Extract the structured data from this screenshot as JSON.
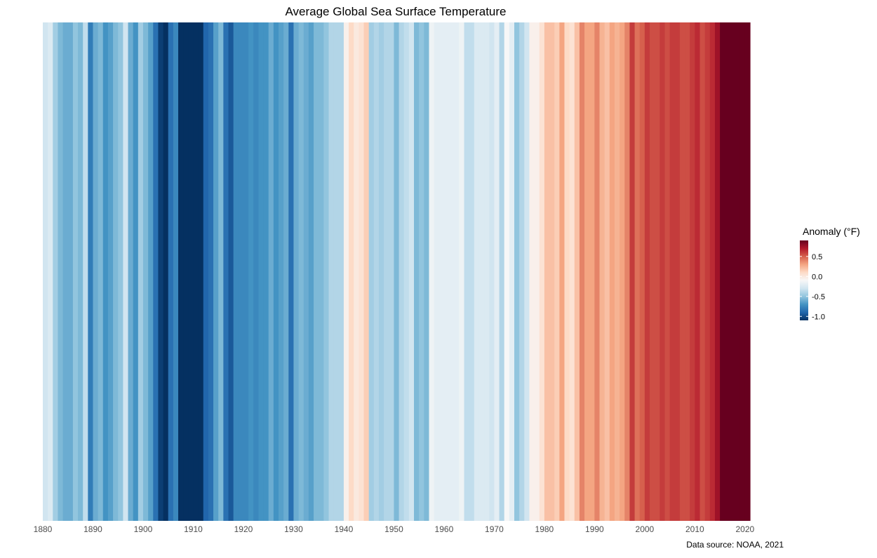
{
  "chart_data": {
    "type": "heatmap",
    "title": "Average Global Sea Surface Temperature",
    "caption": "Data source: NOAA, 2021",
    "x": [
      1880,
      1881,
      1882,
      1883,
      1884,
      1885,
      1886,
      1887,
      1888,
      1889,
      1890,
      1891,
      1892,
      1893,
      1894,
      1895,
      1896,
      1897,
      1898,
      1899,
      1900,
      1901,
      1902,
      1903,
      1904,
      1905,
      1906,
      1907,
      1908,
      1909,
      1910,
      1911,
      1912,
      1913,
      1914,
      1915,
      1916,
      1917,
      1918,
      1919,
      1920,
      1921,
      1922,
      1923,
      1924,
      1925,
      1926,
      1927,
      1928,
      1929,
      1930,
      1931,
      1932,
      1933,
      1934,
      1935,
      1936,
      1937,
      1938,
      1939,
      1940,
      1941,
      1942,
      1943,
      1944,
      1945,
      1946,
      1947,
      1948,
      1949,
      1950,
      1951,
      1952,
      1953,
      1954,
      1955,
      1956,
      1957,
      1958,
      1959,
      1960,
      1961,
      1962,
      1963,
      1964,
      1965,
      1966,
      1967,
      1968,
      1969,
      1970,
      1971,
      1972,
      1973,
      1974,
      1975,
      1976,
      1977,
      1978,
      1979,
      1980,
      1981,
      1982,
      1983,
      1984,
      1985,
      1986,
      1987,
      1988,
      1989,
      1990,
      1991,
      1992,
      1993,
      1994,
      1995,
      1996,
      1997,
      1998,
      1999,
      2000,
      2001,
      2002,
      2003,
      2004,
      2005,
      2006,
      2007,
      2008,
      2009,
      2010,
      2011,
      2012,
      2013,
      2014,
      2015,
      2016,
      2017,
      2018,
      2019,
      2020
    ],
    "values": [
      -0.3,
      -0.25,
      -0.45,
      -0.55,
      -0.6,
      -0.6,
      -0.5,
      -0.55,
      -0.35,
      -0.8,
      -0.6,
      -0.55,
      -0.7,
      -0.65,
      -0.55,
      -0.5,
      -0.3,
      -0.6,
      -0.7,
      -0.45,
      -0.55,
      -0.65,
      -0.85,
      -1.05,
      -1.15,
      -0.85,
      -0.75,
      -1.15,
      -1.2,
      -1.25,
      -1.2,
      -1.2,
      -0.9,
      -0.85,
      -0.65,
      -0.55,
      -0.85,
      -0.95,
      -0.75,
      -0.75,
      -0.75,
      -0.7,
      -0.75,
      -0.7,
      -0.7,
      -0.6,
      -0.7,
      -0.65,
      -0.6,
      -0.85,
      -0.6,
      -0.55,
      -0.6,
      -0.65,
      -0.55,
      -0.55,
      -0.5,
      -0.4,
      -0.4,
      -0.4,
      -0.05,
      0.1,
      0.0,
      0.05,
      0.15,
      -0.45,
      -0.4,
      -0.45,
      -0.4,
      -0.4,
      -0.55,
      -0.4,
      -0.35,
      -0.3,
      -0.55,
      -0.5,
      -0.55,
      -0.15,
      -0.2,
      -0.2,
      -0.2,
      -0.2,
      -0.2,
      -0.15,
      -0.35,
      -0.35,
      -0.25,
      -0.25,
      -0.25,
      -0.3,
      -0.2,
      -0.4,
      -0.1,
      -0.2,
      -0.5,
      -0.4,
      -0.3,
      -0.05,
      -0.05,
      0.05,
      0.2,
      0.2,
      0.15,
      0.3,
      0.1,
      0.05,
      0.2,
      0.4,
      0.3,
      0.3,
      0.4,
      0.25,
      0.2,
      0.3,
      0.25,
      0.3,
      0.4,
      0.6,
      0.45,
      0.5,
      0.6,
      0.55,
      0.55,
      0.6,
      0.55,
      0.6,
      0.6,
      0.55,
      0.55,
      0.6,
      0.65,
      0.55,
      0.6,
      0.65,
      0.75,
      1.0,
      1.0,
      0.9,
      1.0,
      1.1,
      1.05
    ],
    "xlabel": "",
    "ylabel": "",
    "x_ticks": [
      "1880",
      "1890",
      "1900",
      "1910",
      "1920",
      "1930",
      "1940",
      "1950",
      "1960",
      "1970",
      "1980",
      "1990",
      "2000",
      "2010",
      "2020"
    ],
    "x_range": [
      1880,
      2020
    ],
    "legend": {
      "title": "Anomaly (°F)",
      "placement": "right",
      "ticks": [
        0.5,
        0.0,
        -0.5,
        -1.0
      ],
      "tick_labels": [
        "0.5",
        "0.0",
        "-0.5",
        "-1.0"
      ],
      "range": [
        -1.1,
        0.9
      ]
    },
    "grid": false,
    "colors": {
      "scale": [
        "#053061",
        "#2166ac",
        "#4393c3",
        "#92c5de",
        "#d1e5f0",
        "#f7f7f7",
        "#fddbc7",
        "#f4a582",
        "#d6604d",
        "#b2182b",
        "#67001f"
      ],
      "axis_text": "#4d4d4d",
      "title_text": "#000000"
    }
  }
}
